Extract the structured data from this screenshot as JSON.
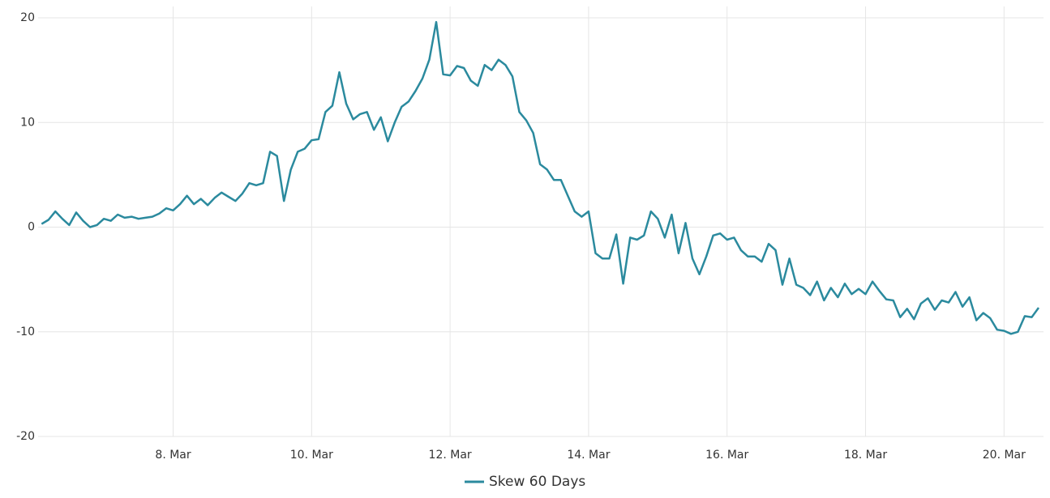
{
  "chart_data": {
    "type": "line",
    "x": [
      6.1,
      6.2,
      6.3,
      6.4,
      6.5,
      6.6,
      6.7,
      6.8,
      6.9,
      7.0,
      7.1,
      7.2,
      7.3,
      7.4,
      7.5,
      7.6,
      7.7,
      7.8,
      7.9,
      8.0,
      8.1,
      8.2,
      8.3,
      8.4,
      8.5,
      8.6,
      8.7,
      8.8,
      8.9,
      9.0,
      9.1,
      9.2,
      9.3,
      9.4,
      9.5,
      9.6,
      9.7,
      9.8,
      9.9,
      10.0,
      10.1,
      10.2,
      10.3,
      10.4,
      10.5,
      10.6,
      10.7,
      10.8,
      10.9,
      11.0,
      11.1,
      11.2,
      11.3,
      11.4,
      11.5,
      11.6,
      11.7,
      11.8,
      11.9,
      12.0,
      12.1,
      12.2,
      12.3,
      12.4,
      12.5,
      12.6,
      12.7,
      12.8,
      12.9,
      13.0,
      13.1,
      13.2,
      13.3,
      13.4,
      13.5,
      13.6,
      13.7,
      13.8,
      13.9,
      14.0,
      14.1,
      14.2,
      14.3,
      14.4,
      14.5,
      14.6,
      14.7,
      14.8,
      14.9,
      15.0,
      15.1,
      15.2,
      15.3,
      15.4,
      15.5,
      15.6,
      15.7,
      15.8,
      15.9,
      16.0,
      16.1,
      16.2,
      16.3,
      16.4,
      16.5,
      16.6,
      16.7,
      16.8,
      16.9,
      17.0,
      17.1,
      17.2,
      17.3,
      17.4,
      17.5,
      17.6,
      17.7,
      17.8,
      17.9,
      18.0,
      18.1,
      18.2,
      18.3,
      18.4,
      18.5,
      18.6,
      18.7,
      18.8,
      18.9,
      19.0,
      19.1,
      19.2,
      19.3,
      19.4,
      19.5,
      19.6,
      19.7,
      19.8,
      19.9,
      20.0,
      20.1,
      20.2,
      20.3,
      20.4,
      20.5
    ],
    "series": [
      {
        "name": "Skew 60 Days",
        "color": "#2b8a9e",
        "values": [
          0.3,
          0.7,
          1.5,
          0.8,
          0.2,
          1.4,
          0.6,
          0.0,
          0.2,
          0.8,
          0.6,
          1.2,
          0.9,
          1.0,
          0.8,
          0.9,
          1.0,
          1.3,
          1.8,
          1.6,
          2.2,
          3.0,
          2.2,
          2.7,
          2.1,
          2.8,
          3.3,
          2.9,
          2.5,
          3.2,
          4.2,
          4.0,
          4.2,
          7.2,
          6.8,
          2.5,
          5.5,
          7.2,
          7.5,
          8.3,
          8.4,
          11.0,
          11.6,
          14.8,
          11.8,
          10.3,
          10.8,
          11.0,
          9.3,
          10.5,
          8.2,
          10.0,
          11.5,
          12.0,
          13.0,
          14.2,
          16.0,
          19.6,
          14.6,
          14.5,
          15.4,
          15.2,
          14.0,
          13.5,
          15.5,
          15.0,
          16.0,
          15.5,
          14.4,
          11.0,
          10.2,
          9.0,
          6.0,
          5.5,
          4.5,
          4.5,
          3.0,
          1.5,
          1.0,
          1.5,
          -2.5,
          -3.0,
          -3.0,
          -0.7,
          -5.4,
          -1.0,
          -1.2,
          -0.8,
          1.5,
          0.8,
          -1.0,
          1.2,
          -2.5,
          0.4,
          -3.0,
          -4.5,
          -2.8,
          -0.8,
          -0.6,
          -1.2,
          -1.0,
          -2.2,
          -2.8,
          -2.8,
          -3.3,
          -1.6,
          -2.2,
          -5.5,
          -3.0,
          -5.5,
          -5.8,
          -6.5,
          -5.2,
          -7.0,
          -5.8,
          -6.7,
          -5.4,
          -6.4,
          -5.9,
          -6.4,
          -5.2,
          -6.1,
          -6.9,
          -7.0,
          -8.6,
          -7.8,
          -8.8,
          -7.3,
          -6.8,
          -7.9,
          -7.0,
          -7.2,
          -6.2,
          -7.6,
          -6.7,
          -8.9,
          -8.2,
          -8.7,
          -9.8,
          -9.9,
          -10.2,
          -10.0,
          -8.5,
          -8.6,
          -7.7
        ]
      }
    ],
    "xlim": [
      6.05,
      20.57
    ],
    "xticks": [
      {
        "value": 8,
        "label": "8. Mar"
      },
      {
        "value": 10,
        "label": "10. Mar"
      },
      {
        "value": 12,
        "label": "12. Mar"
      },
      {
        "value": 14,
        "label": "14. Mar"
      },
      {
        "value": 16,
        "label": "16. Mar"
      },
      {
        "value": 18,
        "label": "18. Mar"
      },
      {
        "value": 20,
        "label": "20. Mar"
      }
    ],
    "ylim": [
      -20,
      20
    ],
    "yticks": [
      -20,
      -10,
      0,
      10,
      20
    ],
    "grid": true,
    "legend": "bottom"
  }
}
